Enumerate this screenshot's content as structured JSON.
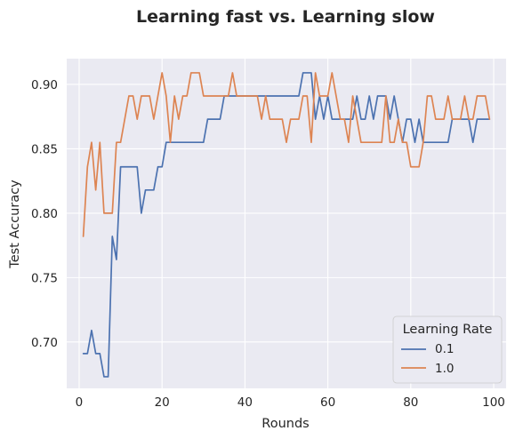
{
  "chart_data": {
    "type": "line",
    "title": "Learning fast vs. Learning slow",
    "xlabel": "Rounds",
    "ylabel": "Test Accuracy",
    "xlim": [
      -3,
      103
    ],
    "ylim": [
      0.664,
      0.92
    ],
    "xticks": [
      0,
      20,
      40,
      60,
      80,
      100
    ],
    "yticks": [
      0.7,
      0.75,
      0.8,
      0.85,
      0.9
    ],
    "ytick_labels": [
      "0.70",
      "0.75",
      "0.80",
      "0.85",
      "0.90"
    ],
    "grid": true,
    "legend": {
      "title": "Learning Rate",
      "placement": "lower-right"
    },
    "x": [
      1,
      2,
      3,
      4,
      5,
      6,
      7,
      8,
      9,
      10,
      11,
      12,
      13,
      14,
      15,
      16,
      17,
      18,
      19,
      20,
      21,
      22,
      23,
      24,
      25,
      26,
      27,
      28,
      29,
      30,
      31,
      32,
      33,
      34,
      35,
      36,
      37,
      38,
      39,
      40,
      41,
      42,
      43,
      44,
      45,
      46,
      47,
      48,
      49,
      50,
      51,
      52,
      53,
      54,
      55,
      56,
      57,
      58,
      59,
      60,
      61,
      62,
      63,
      64,
      65,
      66,
      67,
      68,
      69,
      70,
      71,
      72,
      73,
      74,
      75,
      76,
      77,
      78,
      79,
      80,
      81,
      82,
      83,
      84,
      85,
      86,
      87,
      88,
      89,
      90,
      91,
      92,
      93,
      94,
      95,
      96,
      97,
      98,
      99
    ],
    "series": [
      {
        "name": "0.1",
        "color": "#4c72b0",
        "values": [
          0.691,
          0.691,
          0.709,
          0.691,
          0.691,
          0.673,
          0.673,
          0.782,
          0.764,
          0.836,
          0.836,
          0.836,
          0.836,
          0.836,
          0.8,
          0.818,
          0.818,
          0.818,
          0.836,
          0.836,
          0.855,
          0.855,
          0.855,
          0.855,
          0.855,
          0.855,
          0.855,
          0.855,
          0.855,
          0.855,
          0.873,
          0.873,
          0.873,
          0.873,
          0.891,
          0.891,
          0.891,
          0.891,
          0.891,
          0.891,
          0.891,
          0.891,
          0.891,
          0.891,
          0.891,
          0.891,
          0.891,
          0.891,
          0.891,
          0.891,
          0.891,
          0.891,
          0.891,
          0.909,
          0.909,
          0.909,
          0.873,
          0.891,
          0.873,
          0.891,
          0.873,
          0.873,
          0.873,
          0.873,
          0.873,
          0.873,
          0.891,
          0.873,
          0.873,
          0.891,
          0.873,
          0.891,
          0.891,
          0.891,
          0.873,
          0.891,
          0.873,
          0.855,
          0.873,
          0.873,
          0.855,
          0.873,
          0.855,
          0.855,
          0.855,
          0.855,
          0.855,
          0.855,
          0.855,
          0.873,
          0.873,
          0.873,
          0.873,
          0.873,
          0.855,
          0.873,
          0.873,
          0.873,
          0.873
        ]
      },
      {
        "name": "1.0",
        "color": "#dd8452",
        "values": [
          0.782,
          0.836,
          0.855,
          0.818,
          0.855,
          0.8,
          0.8,
          0.8,
          0.855,
          0.855,
          0.873,
          0.891,
          0.891,
          0.873,
          0.891,
          0.891,
          0.891,
          0.873,
          0.891,
          0.909,
          0.891,
          0.855,
          0.891,
          0.873,
          0.891,
          0.891,
          0.909,
          0.909,
          0.909,
          0.891,
          0.891,
          0.891,
          0.891,
          0.891,
          0.891,
          0.891,
          0.909,
          0.891,
          0.891,
          0.891,
          0.891,
          0.891,
          0.891,
          0.873,
          0.891,
          0.873,
          0.873,
          0.873,
          0.873,
          0.855,
          0.873,
          0.873,
          0.873,
          0.891,
          0.891,
          0.855,
          0.909,
          0.891,
          0.891,
          0.891,
          0.909,
          0.891,
          0.873,
          0.873,
          0.855,
          0.891,
          0.873,
          0.855,
          0.855,
          0.855,
          0.855,
          0.855,
          0.855,
          0.891,
          0.855,
          0.855,
          0.873,
          0.855,
          0.855,
          0.836,
          0.836,
          0.836,
          0.855,
          0.891,
          0.891,
          0.873,
          0.873,
          0.873,
          0.891,
          0.873,
          0.873,
          0.873,
          0.891,
          0.873,
          0.873,
          0.891,
          0.891,
          0.891,
          0.873
        ]
      }
    ]
  }
}
